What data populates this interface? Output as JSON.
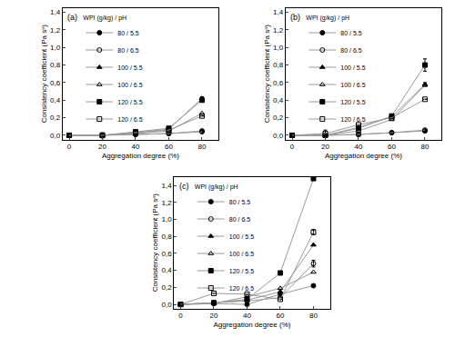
{
  "chart_data": [
    {
      "type": "line",
      "title": "(a)",
      "x_label": "Aggregation degree (%)",
      "y_label": "Consistency coefficient (Pa sⁿ)",
      "legend_title": "WPI (g/kg) / pH",
      "legend": "top left",
      "x": [
        0,
        20,
        40,
        60,
        80
      ],
      "xlim": [
        -4,
        90
      ],
      "xticks": [
        0,
        20,
        40,
        60,
        80
      ],
      "ylim": [
        -0.05,
        1.45
      ],
      "yticks": [
        {
          "value": 0,
          "label": "0,0"
        },
        {
          "value": 0.2,
          "label": "0,2"
        },
        {
          "value": 0.4,
          "label": "0,4"
        },
        {
          "value": 0.6,
          "label": "0,6"
        },
        {
          "value": 0.8,
          "label": "0,8"
        },
        {
          "value": 1.0,
          "label": "1,0"
        },
        {
          "value": 1.2,
          "label": "1,2"
        },
        {
          "value": 1.4,
          "label": "1,4"
        }
      ],
      "series": [
        {
          "name": "80 / 5.5",
          "color": "#000000",
          "marker": "circle",
          "values": [
            0,
            0,
            0.01,
            0.02,
            0.05
          ]
        },
        {
          "name": "80 / 6.5",
          "color": "#000000",
          "marker": "circle-open",
          "values": [
            0,
            0,
            0.01,
            0.02,
            0.04
          ]
        },
        {
          "name": "100 / 5.5",
          "color": "#000000",
          "marker": "triangle-up",
          "values": [
            0,
            0,
            0.03,
            0.07,
            0.42
          ],
          "error": [
            null,
            null,
            null,
            null,
            0.02
          ]
        },
        {
          "name": "100 / 6.5",
          "color": "#000000",
          "marker": "triangle-up-open",
          "values": [
            0,
            0,
            0.02,
            0.05,
            0.25
          ]
        },
        {
          "name": "120 / 5.5",
          "color": "#000000",
          "marker": "square",
          "values": [
            0,
            0,
            0.04,
            0.08,
            0.4
          ]
        },
        {
          "name": "120 / 6.5",
          "color": "#000000",
          "marker": "square-open",
          "values": [
            0,
            0,
            0.03,
            0.06,
            0.22
          ],
          "error": [
            null,
            0.03,
            null,
            null,
            null
          ]
        }
      ]
    },
    {
      "type": "line",
      "title": "(b)",
      "x_label": "Aggregation degree (%)",
      "y_label": "Consistency coefficient (Pa sⁿ)",
      "legend_title": "WPI (g/kg) / pH",
      "legend": "top left",
      "x": [
        0,
        20,
        40,
        60,
        80
      ],
      "xlim": [
        -4,
        90
      ],
      "xticks": [
        0,
        20,
        40,
        60,
        80
      ],
      "ylim": [
        -0.05,
        1.45
      ],
      "yticks": [
        {
          "value": 0,
          "label": "0,0"
        },
        {
          "value": 0.2,
          "label": "0,2"
        },
        {
          "value": 0.4,
          "label": "0,4"
        },
        {
          "value": 0.6,
          "label": "0,6"
        },
        {
          "value": 0.8,
          "label": "0,8"
        },
        {
          "value": 1.0,
          "label": "1,0"
        },
        {
          "value": 1.2,
          "label": "1,2"
        },
        {
          "value": 1.4,
          "label": "1,4"
        }
      ],
      "series": [
        {
          "name": "80 / 5.5",
          "color": "#000000",
          "marker": "circle",
          "values": [
            0,
            0,
            0.01,
            0.03,
            0.05
          ]
        },
        {
          "name": "80 / 6.5",
          "color": "#000000",
          "marker": "circle-open",
          "values": [
            0,
            0,
            0.01,
            0.03,
            0.06
          ]
        },
        {
          "name": "100 / 5.5",
          "color": "#000000",
          "marker": "triangle-up",
          "values": [
            0,
            0,
            0.09,
            0.21,
            0.58
          ],
          "error": [
            null,
            null,
            null,
            null,
            0.02
          ]
        },
        {
          "name": "100 / 6.5",
          "color": "#000000",
          "marker": "triangle-up-open",
          "values": [
            0,
            0,
            0.05,
            0.18,
            0.57
          ]
        },
        {
          "name": "120 / 5.5",
          "color": "#000000",
          "marker": "square",
          "values": [
            0,
            0,
            0.08,
            0.22,
            0.8
          ],
          "error": [
            null,
            null,
            null,
            null,
            0.07
          ]
        },
        {
          "name": "120 / 6.5",
          "color": "#000000",
          "marker": "square-open",
          "values": [
            0,
            0.02,
            0.12,
            0.2,
            0.41
          ],
          "error": [
            null,
            0.04,
            null,
            null,
            null
          ]
        }
      ]
    },
    {
      "type": "line",
      "title": "(c)",
      "x_label": "Aggregation degree (%)",
      "y_label": "Consistency coefficient (Pa sⁿ)",
      "legend_title": "WPI (g/kg) / pH",
      "legend": "top left",
      "x": [
        0,
        20,
        40,
        60,
        80
      ],
      "xlim": [
        -4,
        90
      ],
      "xticks": [
        0,
        20,
        40,
        60,
        80
      ],
      "ylim": [
        -0.05,
        1.5
      ],
      "yticks": [
        {
          "value": 0,
          "label": "0,0"
        },
        {
          "value": 0.2,
          "label": "0,2"
        },
        {
          "value": 0.4,
          "label": "0,4"
        },
        {
          "value": 0.6,
          "label": "0,6"
        },
        {
          "value": 0.8,
          "label": "0,8"
        },
        {
          "value": 1.0,
          "label": "1,0"
        },
        {
          "value": 1.2,
          "label": "1,2"
        },
        {
          "value": 1.4,
          "label": "1,4"
        }
      ],
      "series": [
        {
          "name": "80 / 5.5",
          "color": "#000000",
          "marker": "circle",
          "values": [
            0,
            0.01,
            0.0,
            0.12,
            0.22
          ]
        },
        {
          "name": "80 / 6.5",
          "color": "#000000",
          "marker": "circle-open",
          "values": [
            0,
            0.02,
            0.04,
            0.08,
            0.48
          ],
          "error": [
            null,
            null,
            null,
            null,
            0.04
          ]
        },
        {
          "name": "100 / 5.5",
          "color": "#000000",
          "marker": "triangle-up",
          "values": [
            0,
            0.02,
            0.05,
            0.15,
            0.7
          ]
        },
        {
          "name": "100 / 6.5",
          "color": "#000000",
          "marker": "triangle-up-open",
          "values": [
            0,
            0.01,
            0.09,
            0.19,
            0.38
          ]
        },
        {
          "name": "120 / 5.5",
          "color": "#000000",
          "marker": "square",
          "values": [
            0,
            0.02,
            0.06,
            0.37,
            1.48
          ]
        },
        {
          "name": "120 / 6.5",
          "color": "#000000",
          "marker": "square-open",
          "values": [
            0,
            0.13,
            0.12,
            0.06,
            0.85
          ],
          "error": [
            null,
            null,
            null,
            null,
            0.03
          ]
        }
      ]
    }
  ]
}
